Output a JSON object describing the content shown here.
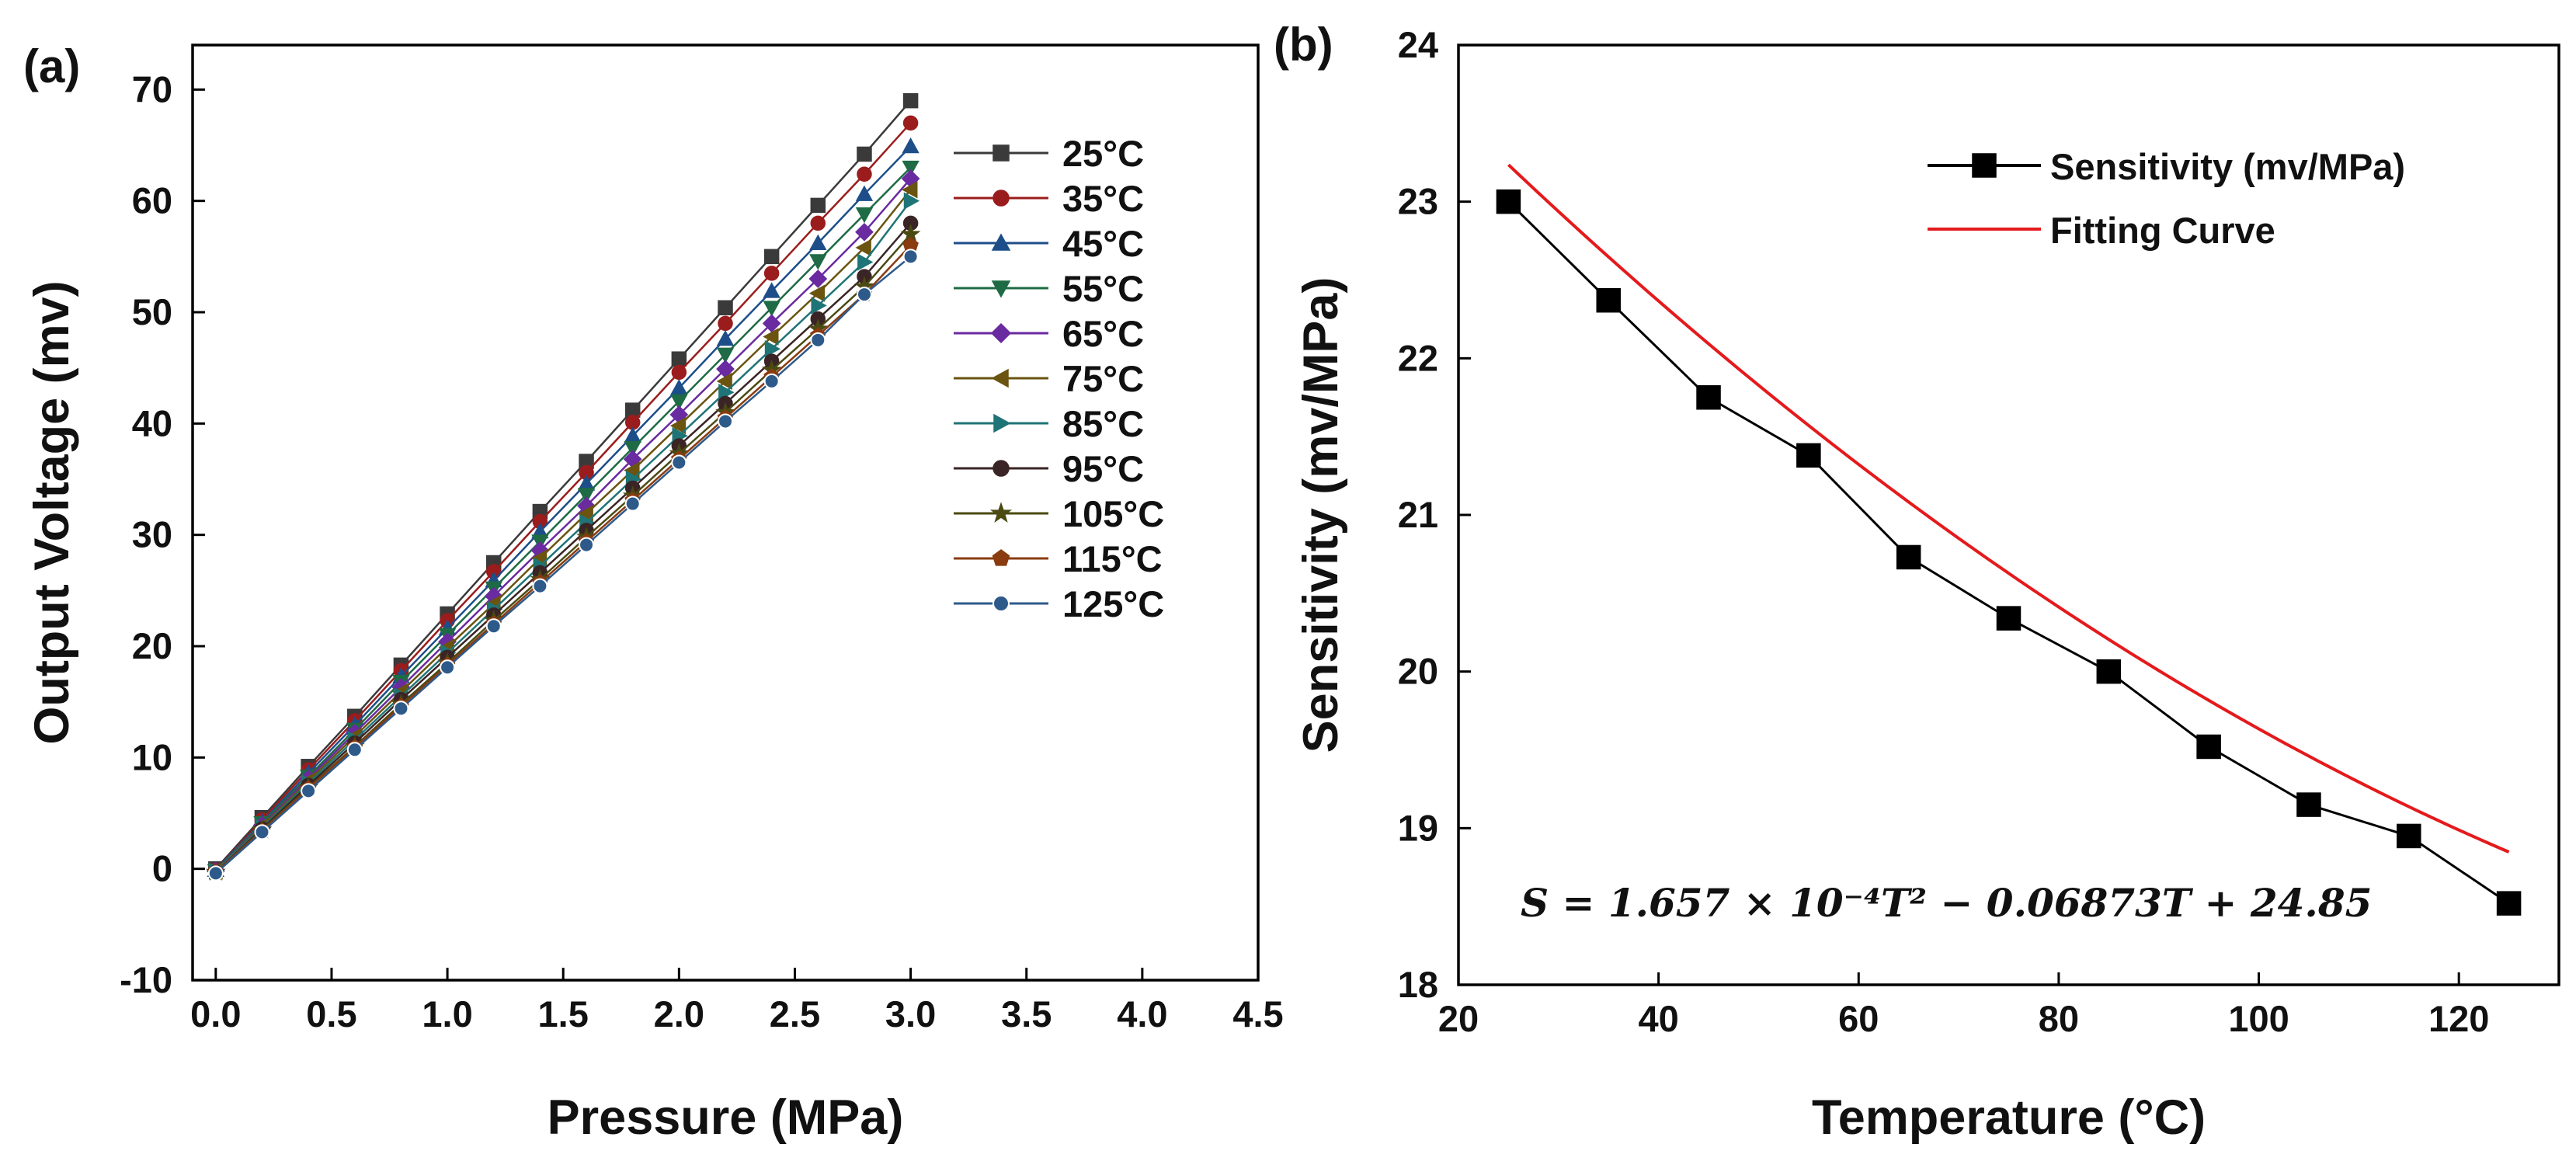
{
  "chart_data": [
    {
      "panel": "(a)",
      "type": "line",
      "title": "",
      "xlabel": "Pressure (MPa)",
      "ylabel": "Output Voltage (mv)",
      "xlim": [
        -0.1,
        4.5
      ],
      "ylim": [
        -10,
        74
      ],
      "xticks": [
        0,
        0.5,
        1,
        1.5,
        2,
        2.5,
        3,
        3.5,
        4,
        4.5
      ],
      "xtick_labels": [
        "0.0",
        "0.5",
        "1.0",
        "1.5",
        "2.0",
        "2.5",
        "3.0",
        "3.5",
        "4.0",
        "4.5"
      ],
      "yticks": [
        -10,
        0,
        10,
        20,
        30,
        40,
        50,
        60,
        70
      ],
      "ytick_labels": [
        "-10",
        "0",
        "10",
        "20",
        "30",
        "40",
        "50",
        "60",
        "70"
      ],
      "grid": false,
      "legend_position": "top-right",
      "x": [
        0,
        0.2,
        0.4,
        0.6,
        0.8,
        1.0,
        1.2,
        1.4,
        1.6,
        1.8,
        2.0,
        2.2,
        2.4,
        2.6,
        2.8,
        3.0
      ],
      "series": [
        {
          "name": "25°C",
          "color": "#3a3a3a",
          "marker": "square",
          "values": [
            0,
            4.6,
            9.2,
            13.7,
            18.3,
            22.9,
            27.5,
            32.1,
            36.6,
            41.2,
            45.8,
            50.4,
            55.0,
            59.6,
            64.2,
            69.0
          ]
        },
        {
          "name": "35°C",
          "color": "#9b1c1c",
          "marker": "circle",
          "values": [
            -0.1,
            4.4,
            8.9,
            13.3,
            17.8,
            22.3,
            26.7,
            31.2,
            35.6,
            40.1,
            44.6,
            49.0,
            53.5,
            58.0,
            62.4,
            67.0
          ]
        },
        {
          "name": "45°C",
          "color": "#1d4e89",
          "marker": "triangle-up",
          "values": [
            -0.1,
            4.2,
            8.6,
            12.9,
            17.3,
            21.6,
            25.9,
            30.3,
            34.6,
            38.9,
            43.2,
            47.6,
            51.9,
            56.2,
            60.6,
            64.9
          ]
        },
        {
          "name": "55°C",
          "color": "#1e6b45",
          "marker": "triangle-down",
          "values": [
            -0.2,
            4.1,
            8.3,
            12.5,
            16.8,
            21.0,
            25.2,
            29.4,
            33.6,
            37.8,
            42.0,
            46.2,
            50.4,
            54.6,
            58.8,
            63.0
          ]
        },
        {
          "name": "65°C",
          "color": "#6a2aa0",
          "marker": "diamond",
          "values": [
            -0.2,
            3.9,
            8.1,
            12.2,
            16.3,
            20.4,
            24.5,
            28.6,
            32.6,
            36.8,
            40.8,
            44.9,
            49.0,
            53.0,
            57.2,
            62.0
          ]
        },
        {
          "name": "75°C",
          "color": "#6a5410",
          "marker": "triangle-left",
          "values": [
            -0.2,
            3.8,
            7.9,
            11.9,
            15.9,
            19.9,
            23.8,
            27.9,
            31.9,
            35.8,
            39.8,
            43.8,
            47.8,
            51.7,
            55.8,
            61.0
          ]
        },
        {
          "name": "85°C",
          "color": "#1f7477",
          "marker": "triangle-right",
          "values": [
            -0.2,
            3.7,
            7.7,
            11.6,
            15.5,
            19.4,
            23.3,
            27.2,
            31.1,
            35.0,
            38.9,
            42.8,
            46.7,
            50.6,
            54.5,
            60.0
          ]
        },
        {
          "name": "95°C",
          "color": "#3a2425",
          "marker": "circle",
          "values": [
            -0.3,
            3.6,
            7.5,
            11.3,
            15.2,
            19.0,
            22.8,
            26.6,
            30.4,
            34.2,
            38.0,
            41.8,
            45.6,
            49.4,
            53.2,
            58.0
          ]
        },
        {
          "name": "105°C",
          "color": "#4a4a12",
          "marker": "star",
          "values": [
            -0.3,
            3.5,
            7.3,
            11.0,
            14.8,
            18.5,
            22.3,
            26.0,
            29.8,
            33.5,
            37.3,
            41.0,
            44.8,
            48.5,
            52.3,
            57.0
          ]
        },
        {
          "name": "115°C",
          "color": "#8a3b10",
          "marker": "pentagon",
          "values": [
            -0.3,
            3.4,
            7.2,
            10.9,
            14.6,
            18.3,
            22.0,
            25.7,
            29.4,
            33.1,
            36.8,
            40.5,
            44.2,
            47.9,
            51.6,
            56.0
          ]
        },
        {
          "name": "125°C",
          "color": "#2e5a8a",
          "marker": "half-circle",
          "values": [
            -0.4,
            3.3,
            7.0,
            10.7,
            14.4,
            18.1,
            21.8,
            25.4,
            29.1,
            32.8,
            36.5,
            40.2,
            43.8,
            47.5,
            51.6,
            55.0
          ]
        }
      ]
    },
    {
      "panel": "(b)",
      "type": "line",
      "title": "",
      "xlabel": "Temperature (°C)",
      "ylabel": "Sensitivity (mv/MPa)",
      "xlim": [
        20,
        130
      ],
      "ylim": [
        18,
        24
      ],
      "xticks": [
        20,
        40,
        60,
        80,
        100,
        120
      ],
      "xtick_labels": [
        "20",
        "40",
        "60",
        "80",
        "100",
        "120"
      ],
      "yticks": [
        18,
        19,
        20,
        21,
        22,
        23,
        24
      ],
      "ytick_labels": [
        "18",
        "19",
        "20",
        "21",
        "22",
        "23",
        "24"
      ],
      "grid": false,
      "legend_position": "top-right",
      "series": [
        {
          "name": "Sensitivity (mv/MPa)",
          "color": "#000000",
          "marker": "square",
          "x": [
            25,
            35,
            45,
            55,
            65,
            75,
            85,
            95,
            105,
            115,
            125
          ],
          "values": [
            23.0,
            22.37,
            21.75,
            21.38,
            20.73,
            20.34,
            20.0,
            19.52,
            19.15,
            18.95,
            18.52
          ]
        },
        {
          "name": "Fitting Curve",
          "color": "#e41a1c",
          "marker": "none",
          "fit": {
            "a": 0.0001657,
            "b": -0.06873,
            "c": 24.85,
            "x_from": 25,
            "x_to": 125
          }
        }
      ],
      "annotation": "S = 1.657 × 10⁻⁴T² − 0.06873T + 24.85"
    }
  ]
}
